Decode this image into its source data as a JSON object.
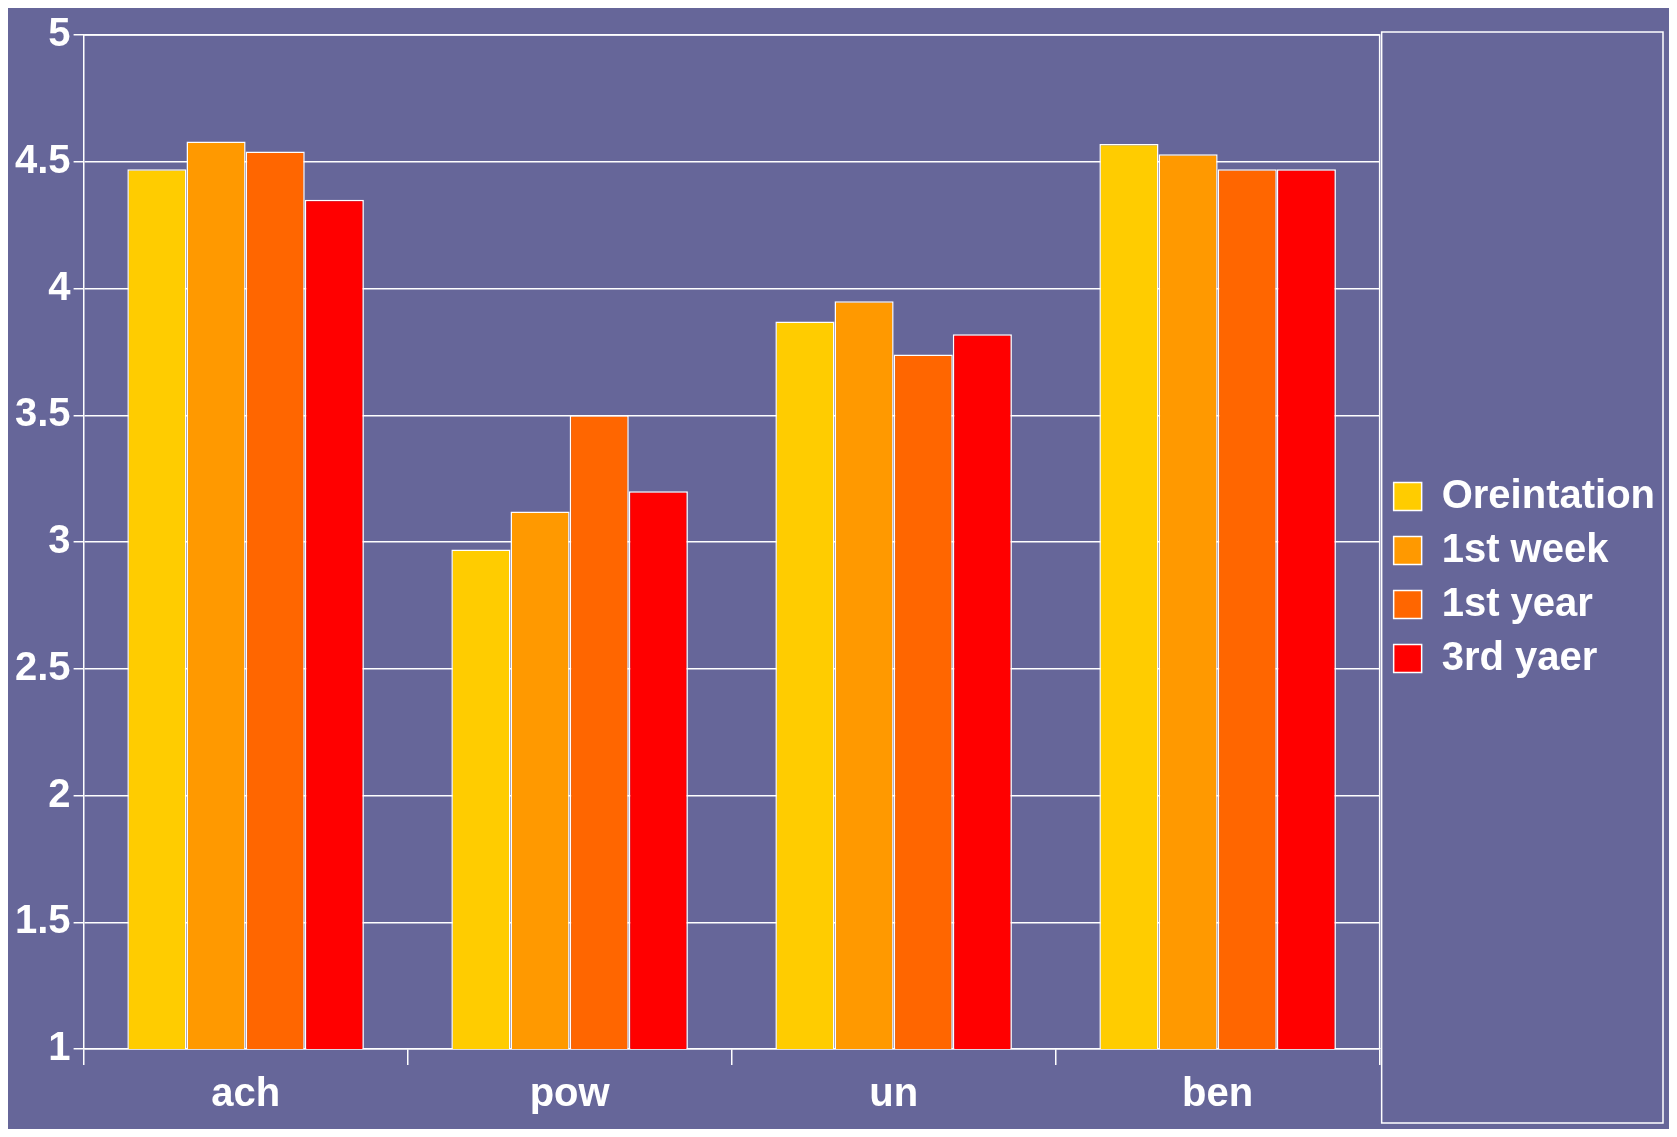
{
  "chart_data": {
    "type": "bar",
    "categories": [
      "ach",
      "pow",
      "un",
      "ben"
    ],
    "series": [
      {
        "name": "Oreintation",
        "color": "#ffcc00",
        "values": [
          4.47,
          2.97,
          3.87,
          4.57
        ]
      },
      {
        "name": "1st week",
        "color": "#ff9900",
        "values": [
          4.58,
          3.12,
          3.95,
          4.53
        ]
      },
      {
        "name": "1st year",
        "color": "#ff6600",
        "values": [
          4.54,
          3.5,
          3.74,
          4.47
        ]
      },
      {
        "name": "3rd yaer",
        "color": "#ff0000",
        "values": [
          4.35,
          3.2,
          3.82,
          4.47
        ]
      }
    ],
    "ylim": [
      1,
      5
    ],
    "yticks": [
      1,
      1.5,
      2,
      2.5,
      3,
      3.5,
      4,
      4.5,
      5
    ],
    "grid": "y",
    "legend": "right"
  }
}
